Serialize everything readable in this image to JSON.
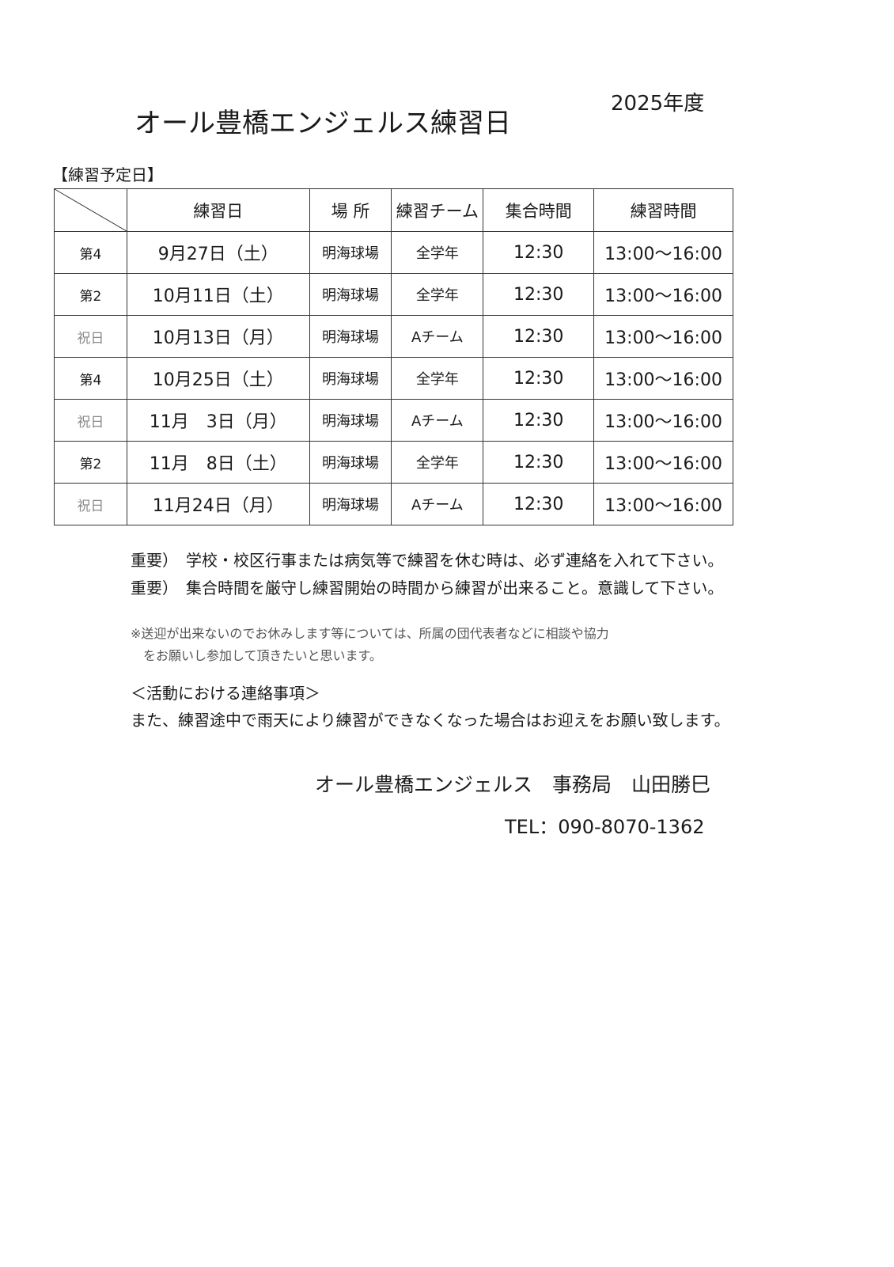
{
  "header": {
    "title": "オール豊橋エンジェルス練習日",
    "year": "2025年度",
    "section": "【練習予定日】"
  },
  "table": {
    "columns": [
      "練習日",
      "場 所",
      "練習チーム",
      "集合時間",
      "練習時間"
    ],
    "rows": [
      {
        "type": "第4",
        "holiday": false,
        "date": "9月27日（土）",
        "place": "明海球場",
        "team": "全学年",
        "meet": "12:30",
        "time": "13:00～16:00"
      },
      {
        "type": "第2",
        "holiday": false,
        "date": "10月11日（土）",
        "place": "明海球場",
        "team": "全学年",
        "meet": "12:30",
        "time": "13:00～16:00"
      },
      {
        "type": "祝日",
        "holiday": true,
        "date": "10月13日（月）",
        "place": "明海球場",
        "team": "Aチーム",
        "meet": "12:30",
        "time": "13:00～16:00"
      },
      {
        "type": "第4",
        "holiday": false,
        "date": "10月25日（土）",
        "place": "明海球場",
        "team": "全学年",
        "meet": "12:30",
        "time": "13:00～16:00"
      },
      {
        "type": "祝日",
        "holiday": true,
        "date": "11月　3日（月）",
        "place": "明海球場",
        "team": "Aチーム",
        "meet": "12:30",
        "time": "13:00～16:00"
      },
      {
        "type": "第2",
        "holiday": false,
        "date": "11月　8日（土）",
        "place": "明海球場",
        "team": "全学年",
        "meet": "12:30",
        "time": "13:00～16:00"
      },
      {
        "type": "祝日",
        "holiday": true,
        "date": "11月24日（月）",
        "place": "明海球場",
        "team": "Aチーム",
        "meet": "12:30",
        "time": "13:00～16:00"
      }
    ]
  },
  "notes": {
    "important1": "重要）　学校・校区行事または病気等で練習を休む時は、必ず連絡を入れて下さい。",
    "important2": "重要）　集合時間を厳守し練習開始の時間から練習が出来ること。意識して下さい。",
    "remark1": "※送迎が出来ないのでお休みします等については、所属の団代表者などに相談や協力",
    "remark2": "　をお願いし参加して頂きたいと思います。",
    "contact_heading": "＜活動における連絡事項＞",
    "contact_text": "また、練習途中で雨天により練習ができなくなった場合はお迎えをお願い致します。"
  },
  "footer": {
    "signature": "オール豊橋エンジェルス　事務局　山田勝巳",
    "tel": "TEL：090-8070-1362"
  }
}
